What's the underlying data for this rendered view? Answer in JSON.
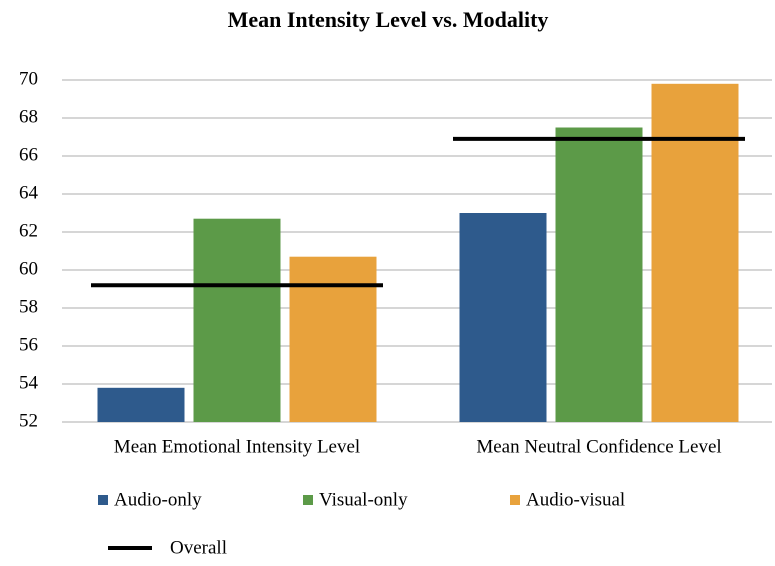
{
  "chart_data": {
    "type": "bar",
    "title": "Mean Intensity Level vs. Modality",
    "categories": [
      "Mean Emotional Intensity Level",
      "Mean Neutral Confidence Level"
    ],
    "series": [
      {
        "name": "Audio-only",
        "color": "#2e5a8c",
        "values": [
          53.8,
          63.0
        ]
      },
      {
        "name": "Visual-only",
        "color": "#5c9a48",
        "values": [
          62.7,
          67.5
        ]
      },
      {
        "name": "Audio-visual",
        "color": "#e8a23c",
        "values": [
          60.7,
          69.8
        ]
      }
    ],
    "overall": {
      "name": "Overall",
      "color": "#000000",
      "values": [
        59.2,
        66.9
      ]
    },
    "ylim": [
      52,
      70
    ],
    "yticks": [
      52,
      54,
      56,
      58,
      60,
      62,
      64,
      66,
      68,
      70
    ],
    "grid": true
  }
}
